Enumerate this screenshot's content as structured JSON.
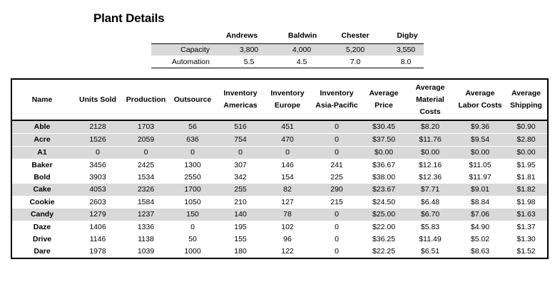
{
  "title": "Plant Details",
  "plant": {
    "columns": [
      "Andrews",
      "Baldwin",
      "Chester",
      "Digby"
    ],
    "rows": [
      {
        "label": "Capacity",
        "values": [
          "3,800",
          "4,000",
          "5,200",
          "3,550"
        ]
      },
      {
        "label": "Automation",
        "values": [
          "5.5",
          "4.5",
          "7.0",
          "8.0"
        ]
      }
    ]
  },
  "details": {
    "headers": [
      "Name",
      "Units Sold",
      "Production",
      "Outsource",
      "Inventory Americas",
      "Inventory Europe",
      "Inventory Asia-Pacific",
      "Average Price",
      "Average Material Costs",
      "Average Labor Costs",
      "Average Shipping"
    ],
    "rows": [
      [
        "Able",
        "2128",
        "1703",
        "56",
        "516",
        "451",
        "0",
        "$30.45",
        "$8.20",
        "$9.36",
        "$0.90"
      ],
      [
        "Acre",
        "1526",
        "2059",
        "636",
        "754",
        "470",
        "0",
        "$37.50",
        "$11.76",
        "$9.54",
        "$2.80"
      ],
      [
        "A1",
        "0",
        "0",
        "0",
        "0",
        "0",
        "0",
        "$0.00",
        "$0.00",
        "$0.00",
        "$0.00"
      ],
      [
        "Baker",
        "3456",
        "2425",
        "1300",
        "307",
        "146",
        "241",
        "$36.67",
        "$12.16",
        "$11.05",
        "$1.95"
      ],
      [
        "Bold",
        "3903",
        "1534",
        "2550",
        "342",
        "154",
        "225",
        "$38.00",
        "$12.36",
        "$11.97",
        "$1.81"
      ],
      [
        "Cake",
        "4053",
        "2326",
        "1700",
        "255",
        "82",
        "290",
        "$23.67",
        "$7.71",
        "$9.01",
        "$1.82"
      ],
      [
        "Cookie",
        "2603",
        "1584",
        "1050",
        "210",
        "127",
        "215",
        "$24.50",
        "$6.48",
        "$8.84",
        "$1.98"
      ],
      [
        "Candy",
        "1279",
        "1237",
        "150",
        "140",
        "78",
        "0",
        "$25.00",
        "$6.70",
        "$7.06",
        "$1.63"
      ],
      [
        "Daze",
        "1406",
        "1336",
        "0",
        "195",
        "102",
        "0",
        "$22.00",
        "$5.83",
        "$4.90",
        "$1.37"
      ],
      [
        "Drive",
        "1146",
        "1138",
        "50",
        "155",
        "96",
        "0",
        "$36.25",
        "$11.49",
        "$5.02",
        "$1.30"
      ],
      [
        "Dare",
        "1978",
        "1039",
        "1000",
        "180",
        "122",
        "0",
        "$22.25",
        "$6.51",
        "$8.63",
        "$1.52"
      ]
    ]
  }
}
